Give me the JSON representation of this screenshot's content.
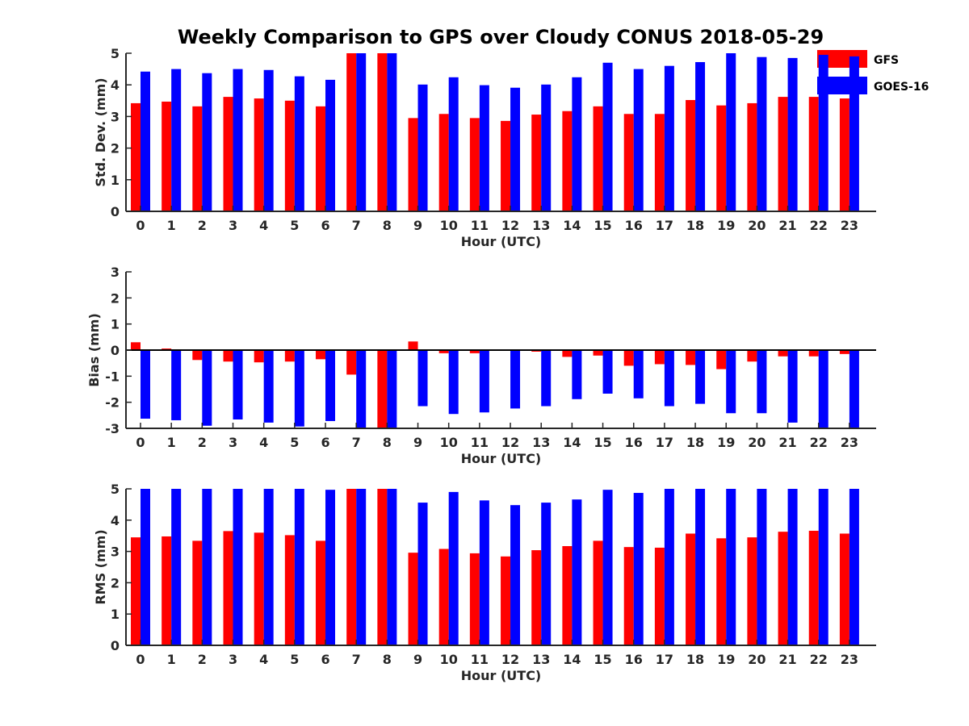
{
  "title": "Weekly Comparison to GPS over Cloudy CONUS 2018-05-29",
  "legend": {
    "placement": "top-right",
    "entries": [
      {
        "name": "GFS",
        "color": "#ff0000"
      },
      {
        "name": "GOES-16",
        "color": "#0000ff"
      }
    ]
  },
  "chart_data": [
    {
      "type": "bar",
      "xlabel": "Hour (UTC)",
      "ylabel": "Std. Dev. (mm)",
      "ylim": [
        0,
        5
      ],
      "yticks": [
        0,
        1,
        2,
        3,
        4,
        5
      ],
      "categories": [
        "0",
        "1",
        "2",
        "3",
        "4",
        "5",
        "6",
        "7",
        "8",
        "9",
        "10",
        "11",
        "12",
        "13",
        "14",
        "15",
        "16",
        "17",
        "18",
        "19",
        "20",
        "21",
        "22",
        "23"
      ],
      "series": [
        {
          "name": "GFS",
          "color": "#ff0000",
          "values": [
            3.42,
            3.47,
            3.32,
            3.62,
            3.57,
            3.5,
            3.32,
            5.0,
            5.0,
            2.95,
            3.08,
            2.95,
            2.86,
            3.06,
            3.17,
            3.32,
            3.08,
            3.08,
            3.52,
            3.35,
            3.42,
            3.62,
            3.62,
            3.57
          ]
        },
        {
          "name": "GOES-16",
          "color": "#0000ff",
          "values": [
            4.42,
            4.5,
            4.37,
            4.5,
            4.47,
            4.27,
            4.16,
            5.0,
            5.0,
            4.01,
            4.24,
            3.99,
            3.91,
            4.01,
            4.24,
            4.7,
            4.5,
            4.6,
            4.72,
            5.0,
            4.88,
            4.85,
            4.95,
            4.9
          ]
        }
      ]
    },
    {
      "type": "bar",
      "xlabel": "Hour (UTC)",
      "ylabel": "Bias (mm)",
      "ylim": [
        -3,
        3
      ],
      "yticks": [
        -3,
        -2,
        -1,
        0,
        1,
        2,
        3
      ],
      "baseline_line": true,
      "categories": [
        "0",
        "1",
        "2",
        "3",
        "4",
        "5",
        "6",
        "7",
        "8",
        "9",
        "10",
        "11",
        "12",
        "13",
        "14",
        "15",
        "16",
        "17",
        "18",
        "19",
        "20",
        "21",
        "22",
        "23"
      ],
      "series": [
        {
          "name": "GFS",
          "color": "#ff0000",
          "values": [
            0.3,
            0.06,
            -0.38,
            -0.44,
            -0.47,
            -0.44,
            -0.35,
            -0.94,
            -3.0,
            0.33,
            -0.12,
            -0.12,
            -0.03,
            -0.06,
            -0.26,
            -0.21,
            -0.6,
            -0.54,
            -0.57,
            -0.73,
            -0.44,
            -0.24,
            -0.24,
            -0.15
          ]
        },
        {
          "name": "GOES-16",
          "color": "#0000ff",
          "values": [
            -2.63,
            -2.69,
            -2.9,
            -2.66,
            -2.78,
            -2.93,
            -2.72,
            -3.0,
            -3.0,
            -2.15,
            -2.45,
            -2.39,
            -2.24,
            -2.15,
            -1.88,
            -1.67,
            -1.85,
            -2.15,
            -2.06,
            -2.42,
            -2.42,
            -2.78,
            -3.0,
            -3.0
          ]
        }
      ]
    },
    {
      "type": "bar",
      "xlabel": "Hour (UTC)",
      "ylabel": "RMS (mm)",
      "ylim": [
        0,
        5
      ],
      "yticks": [
        0,
        1,
        2,
        3,
        4,
        5
      ],
      "categories": [
        "0",
        "1",
        "2",
        "3",
        "4",
        "5",
        "6",
        "7",
        "8",
        "9",
        "10",
        "11",
        "12",
        "13",
        "14",
        "15",
        "16",
        "17",
        "18",
        "19",
        "20",
        "21",
        "22",
        "23"
      ],
      "series": [
        {
          "name": "GFS",
          "color": "#ff0000",
          "values": [
            3.45,
            3.48,
            3.34,
            3.65,
            3.6,
            3.52,
            3.34,
            5.0,
            5.0,
            2.96,
            3.08,
            2.94,
            2.84,
            3.04,
            3.17,
            3.34,
            3.14,
            3.12,
            3.57,
            3.42,
            3.45,
            3.63,
            3.66,
            3.57
          ]
        },
        {
          "name": "GOES-16",
          "color": "#0000ff",
          "values": [
            5.0,
            5.0,
            5.0,
            5.0,
            5.0,
            5.0,
            4.97,
            5.0,
            5.0,
            4.56,
            4.9,
            4.63,
            4.48,
            4.56,
            4.66,
            4.97,
            4.87,
            5.0,
            5.0,
            5.0,
            5.0,
            5.0,
            5.0,
            5.0
          ]
        }
      ]
    }
  ]
}
